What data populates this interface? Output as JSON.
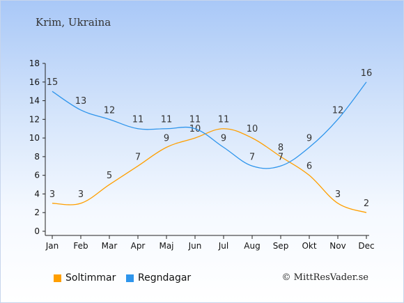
{
  "header": {
    "place": "Krim, Ukraina"
  },
  "credit": "© MittResVader.se",
  "chart_data": {
    "type": "line",
    "categories": [
      "Jan",
      "Feb",
      "Mar",
      "Apr",
      "Maj",
      "Jun",
      "Jul",
      "Aug",
      "Sep",
      "Okt",
      "Nov",
      "Dec"
    ],
    "ylim": [
      0,
      18
    ],
    "yticks": [
      0,
      2,
      4,
      6,
      8,
      10,
      12,
      14,
      16,
      18
    ],
    "grid": false,
    "legend": "bottom-left",
    "series": [
      {
        "name": "Soltimmar",
        "color": "#ff9f00",
        "values": [
          3,
          3,
          5,
          7,
          9,
          10,
          11,
          10,
          8,
          6,
          3,
          2
        ]
      },
      {
        "name": "Regndagar",
        "color": "#2e95ec",
        "values": [
          15,
          13,
          12,
          11,
          11,
          11,
          9,
          7,
          7,
          9,
          12,
          16
        ]
      }
    ]
  }
}
